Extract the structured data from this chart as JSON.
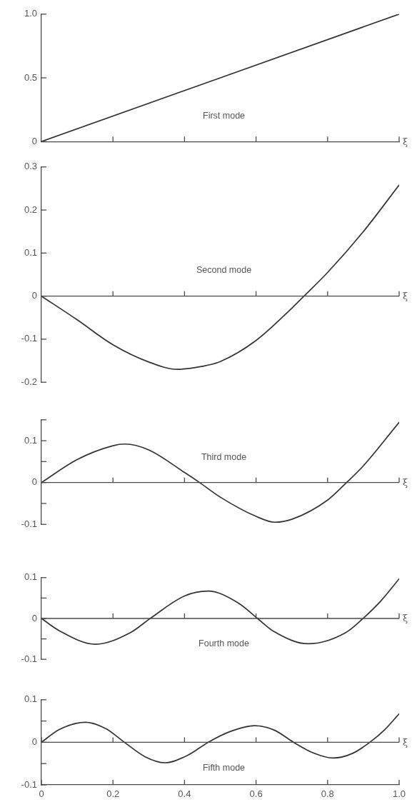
{
  "chart_data": [
    {
      "type": "line",
      "title": "First mode",
      "xlabel": "ξ",
      "x": [
        0,
        1
      ],
      "values": [
        0,
        1
      ],
      "color": "#333333",
      "line_style": "solid",
      "marker": "none",
      "xlim": [
        0,
        1
      ],
      "xticks": [
        {
          "value": 0.2,
          "label": null
        },
        {
          "value": 0.4,
          "label": null
        },
        {
          "value": 0.6,
          "label": null
        },
        {
          "value": 0.8,
          "label": null
        },
        {
          "value": 1,
          "label": null
        }
      ],
      "ylim": [
        0,
        1
      ],
      "yticks": [
        0,
        0.5,
        {
          "value": 1,
          "label": "1.0"
        }
      ],
      "tick_labels": "y",
      "grid": false,
      "legend": false
    },
    {
      "type": "line",
      "title": "Second mode",
      "xlabel": "ξ",
      "x": [
        0,
        0.1,
        0.2,
        0.3,
        0.38,
        0.45,
        0.5,
        0.6,
        0.7,
        0.734,
        0.8,
        0.9,
        1
      ],
      "values": [
        0,
        -0.055,
        -0.113,
        -0.153,
        -0.17,
        -0.163,
        -0.152,
        -0.103,
        -0.028,
        0,
        0.055,
        0.15,
        0.258
      ],
      "color": "#333333",
      "line_style": "solid",
      "marker": "none",
      "xlim": [
        0,
        1
      ],
      "xticks": [
        {
          "value": 0.2,
          "label": null
        },
        {
          "value": 0.4,
          "label": null
        },
        {
          "value": 0.6,
          "label": null
        },
        {
          "value": 0.8,
          "label": null
        },
        {
          "value": 1,
          "label": null
        }
      ],
      "ylim": [
        -0.2,
        0.3
      ],
      "yticks": [
        -0.2,
        -0.1,
        0,
        0.1,
        0.2,
        0.3
      ],
      "ref_lines": [
        {
          "axis": "y",
          "value": 0
        }
      ],
      "tick_labels": "y",
      "grid": false,
      "legend": false
    },
    {
      "type": "line",
      "title": "Third mode",
      "xlabel": "ξ",
      "x": [
        0,
        0.1,
        0.2,
        0.233,
        0.3,
        0.4,
        0.442,
        0.5,
        0.6,
        0.653,
        0.7,
        0.8,
        0.853,
        0.9,
        1
      ],
      "values": [
        0,
        0.055,
        0.088,
        0.092,
        0.078,
        0.024,
        0,
        -0.035,
        -0.081,
        -0.095,
        -0.088,
        -0.042,
        0,
        0.04,
        0.144
      ],
      "color": "#333333",
      "line_style": "solid",
      "marker": "none",
      "xlim": [
        0,
        1
      ],
      "xticks": [
        {
          "value": 0.2,
          "label": null
        },
        {
          "value": 0.4,
          "label": null
        },
        {
          "value": 0.6,
          "label": null
        },
        {
          "value": 0.8,
          "label": null
        },
        {
          "value": 1,
          "label": null
        }
      ],
      "ylim": [
        -0.1,
        0.15
      ],
      "yticks": [
        -0.1,
        {
          "value": -0.05,
          "label": null
        },
        0,
        {
          "value": 0.05,
          "label": null
        },
        0.1,
        {
          "value": 0.15,
          "label": null
        }
      ],
      "ref_lines": [
        {
          "axis": "y",
          "value": 0
        }
      ],
      "tick_labels": "y",
      "grid": false,
      "legend": false
    },
    {
      "type": "line",
      "title": "Fourth mode",
      "xlabel": "ξ",
      "x": [
        0,
        0.05,
        0.151,
        0.25,
        0.304,
        0.4,
        0.466,
        0.55,
        0.604,
        0.65,
        0.746,
        0.85,
        0.899,
        0.95,
        1
      ],
      "values": [
        0,
        -0.03,
        -0.063,
        -0.034,
        0,
        0.055,
        0.067,
        0.038,
        0,
        -0.032,
        -0.062,
        -0.035,
        0,
        0.044,
        0.097
      ],
      "color": "#333333",
      "line_style": "solid",
      "marker": "none",
      "xlim": [
        0,
        1
      ],
      "xticks": [
        {
          "value": 0.2,
          "label": null
        },
        {
          "value": 0.4,
          "label": null
        },
        {
          "value": 0.6,
          "label": null
        },
        {
          "value": 0.8,
          "label": null
        },
        {
          "value": 1,
          "label": null
        }
      ],
      "ylim": [
        -0.1,
        0.1
      ],
      "yticks": [
        -0.1,
        {
          "value": -0.05,
          "label": null
        },
        0,
        {
          "value": 0.05,
          "label": null
        },
        0.1
      ],
      "ref_lines": [
        {
          "axis": "y",
          "value": 0
        }
      ],
      "tick_labels": "y",
      "grid": false,
      "legend": false
    },
    {
      "type": "line",
      "title": "Fifth mode",
      "xlabel": "ξ",
      "x": [
        0,
        0.05,
        0.123,
        0.18,
        0.232,
        0.29,
        0.345,
        0.41,
        0.466,
        0.53,
        0.596,
        0.65,
        0.705,
        0.76,
        0.815,
        0.87,
        0.918,
        0.96,
        1
      ],
      "values": [
        0,
        0.03,
        0.047,
        0.032,
        0,
        -0.034,
        -0.048,
        -0.03,
        0,
        0.026,
        0.039,
        0.029,
        0,
        -0.025,
        -0.037,
        -0.026,
        0,
        0.03,
        0.067
      ],
      "color": "#333333",
      "line_style": "solid",
      "marker": "none",
      "xlim": [
        0,
        1
      ],
      "xticks": [
        0,
        0.2,
        0.4,
        0.6,
        0.8,
        {
          "value": 1,
          "label": "1.0"
        }
      ],
      "ylim": [
        -0.1,
        0.1
      ],
      "yticks": [
        -0.1,
        {
          "value": -0.05,
          "label": null
        },
        0,
        {
          "value": 0.05,
          "label": null
        },
        0.1
      ],
      "ref_lines": [
        {
          "axis": "y",
          "value": 0
        }
      ],
      "grid": false,
      "legend": false
    }
  ]
}
